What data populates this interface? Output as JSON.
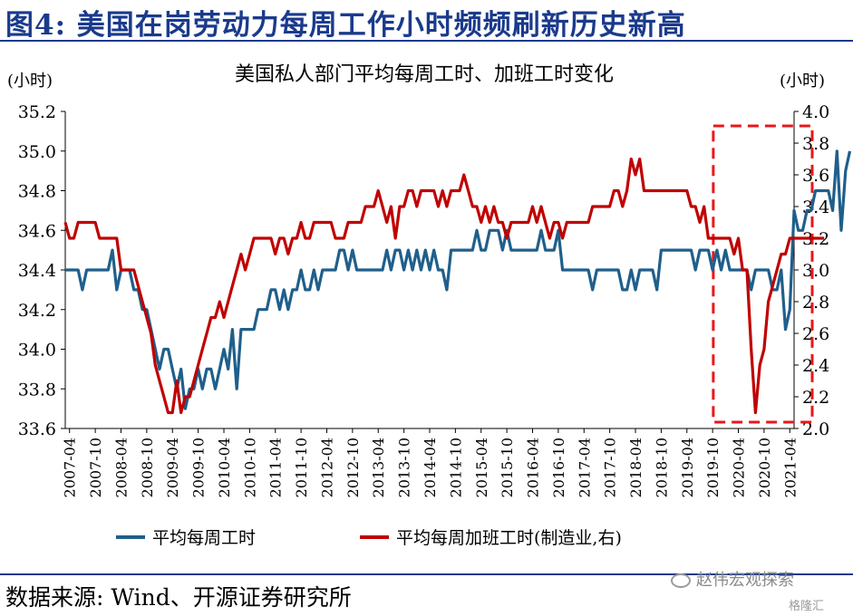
{
  "figure": {
    "title": "图4:  美国在岗劳动力每周工作小时频频刷新历史新高",
    "source": "数据来源:  Wind、开源证券研究所",
    "watermark": "赵伟宏观探索",
    "watermark_small": "格隆汇"
  },
  "chart_data": {
    "type": "line",
    "title": "美国私人部门平均每周工时、加班工时变化",
    "y_left_unit": "(小时)",
    "y_right_unit": "(小时)",
    "ylim_left": [
      33.6,
      35.2
    ],
    "ylim_right": [
      2.0,
      4.0
    ],
    "yticks_left": [
      "33.6",
      "33.8",
      "34.0",
      "34.2",
      "34.4",
      "34.6",
      "34.8",
      "35.0",
      "35.2"
    ],
    "yticks_right": [
      "2.0",
      "2.2",
      "2.4",
      "2.6",
      "2.8",
      "3.0",
      "3.2",
      "3.4",
      "3.6",
      "3.8",
      "4.0"
    ],
    "x_ticks": [
      "2007-04",
      "2007-10",
      "2008-04",
      "2008-10",
      "2009-04",
      "2009-10",
      "2010-04",
      "2010-10",
      "2011-04",
      "2011-10",
      "2012-04",
      "2012-10",
      "2013-04",
      "2013-10",
      "2014-04",
      "2014-10",
      "2015-04",
      "2015-10",
      "2016-04",
      "2016-10",
      "2017-04",
      "2017-10",
      "2018-04",
      "2018-10",
      "2019-04",
      "2019-10",
      "2020-04",
      "2020-10",
      "2021-04"
    ],
    "x_start": "2007-03",
    "grid": false,
    "legend_position": "bottom",
    "highlight_box": {
      "from": "2019-11",
      "to": "2021-04",
      "style": "red dashed"
    },
    "series": [
      {
        "name": "平均每周工时",
        "axis": "left",
        "color": "#1f5f8b",
        "values": [
          34.4,
          34.4,
          34.4,
          34.4,
          34.3,
          34.4,
          34.4,
          34.4,
          34.4,
          34.4,
          34.4,
          34.5,
          34.3,
          34.4,
          34.4,
          34.4,
          34.3,
          34.3,
          34.2,
          34.2,
          34.1,
          34.0,
          33.9,
          34.0,
          34.0,
          33.9,
          33.8,
          33.9,
          33.7,
          33.8,
          33.8,
          33.9,
          33.8,
          33.9,
          33.9,
          33.8,
          33.9,
          34.0,
          33.9,
          34.1,
          33.8,
          34.1,
          34.1,
          34.1,
          34.1,
          34.2,
          34.2,
          34.2,
          34.3,
          34.3,
          34.2,
          34.3,
          34.2,
          34.3,
          34.3,
          34.4,
          34.3,
          34.3,
          34.4,
          34.3,
          34.4,
          34.4,
          34.4,
          34.4,
          34.5,
          34.5,
          34.4,
          34.5,
          34.4,
          34.4,
          34.4,
          34.4,
          34.4,
          34.4,
          34.4,
          34.5,
          34.4,
          34.5,
          34.5,
          34.4,
          34.5,
          34.4,
          34.5,
          34.4,
          34.5,
          34.4,
          34.5,
          34.4,
          34.4,
          34.3,
          34.5,
          34.5,
          34.5,
          34.5,
          34.5,
          34.5,
          34.6,
          34.5,
          34.5,
          34.6,
          34.6,
          34.6,
          34.5,
          34.6,
          34.5,
          34.5,
          34.5,
          34.5,
          34.5,
          34.5,
          34.5,
          34.6,
          34.5,
          34.5,
          34.5,
          34.6,
          34.4,
          34.4,
          34.4,
          34.4,
          34.4,
          34.4,
          34.4,
          34.3,
          34.4,
          34.4,
          34.4,
          34.4,
          34.4,
          34.4,
          34.3,
          34.3,
          34.4,
          34.3,
          34.4,
          34.4,
          34.4,
          34.4,
          34.3,
          34.5,
          34.5,
          34.5,
          34.5,
          34.5,
          34.5,
          34.5,
          34.5,
          34.4,
          34.5,
          34.5,
          34.5,
          34.4,
          34.5,
          34.4,
          34.5,
          34.4,
          34.4,
          34.4,
          34.4,
          34.4,
          34.3,
          34.4,
          34.4,
          34.4,
          34.4,
          34.3,
          34.3,
          34.4,
          34.1,
          34.2,
          34.7,
          34.6,
          34.6,
          34.7,
          34.7,
          34.8,
          34.8,
          34.8,
          34.8,
          34.7,
          35.0,
          34.6,
          34.9,
          35.0
        ]
      },
      {
        "name": "平均每周加班工时(制造业,右)",
        "axis": "right",
        "color": "#c00000",
        "values": [
          3.3,
          3.2,
          3.2,
          3.3,
          3.3,
          3.3,
          3.3,
          3.3,
          3.2,
          3.2,
          3.2,
          3.2,
          3.2,
          3.0,
          3.0,
          3.0,
          3.0,
          2.9,
          2.8,
          2.7,
          2.6,
          2.4,
          2.3,
          2.2,
          2.1,
          2.1,
          2.3,
          2.1,
          2.2,
          2.2,
          2.3,
          2.4,
          2.5,
          2.6,
          2.7,
          2.7,
          2.8,
          2.7,
          2.8,
          2.9,
          3.0,
          3.1,
          3.0,
          3.1,
          3.2,
          3.2,
          3.2,
          3.2,
          3.2,
          3.1,
          3.2,
          3.2,
          3.1,
          3.2,
          3.2,
          3.3,
          3.2,
          3.2,
          3.3,
          3.3,
          3.3,
          3.3,
          3.3,
          3.2,
          3.2,
          3.2,
          3.3,
          3.3,
          3.3,
          3.3,
          3.4,
          3.4,
          3.4,
          3.5,
          3.4,
          3.3,
          3.4,
          3.2,
          3.4,
          3.4,
          3.5,
          3.5,
          3.4,
          3.5,
          3.5,
          3.5,
          3.5,
          3.4,
          3.5,
          3.4,
          3.5,
          3.5,
          3.5,
          3.6,
          3.5,
          3.4,
          3.4,
          3.3,
          3.4,
          3.3,
          3.4,
          3.3,
          3.3,
          3.2,
          3.3,
          3.3,
          3.3,
          3.3,
          3.3,
          3.4,
          3.3,
          3.4,
          3.3,
          3.2,
          3.3,
          3.3,
          3.2,
          3.3,
          3.3,
          3.3,
          3.3,
          3.3,
          3.3,
          3.4,
          3.4,
          3.4,
          3.4,
          3.4,
          3.5,
          3.5,
          3.4,
          3.5,
          3.7,
          3.6,
          3.7,
          3.5,
          3.5,
          3.5,
          3.5,
          3.5,
          3.5,
          3.5,
          3.5,
          3.5,
          3.5,
          3.5,
          3.4,
          3.4,
          3.3,
          3.4,
          3.2,
          3.2,
          3.2,
          3.2,
          3.2,
          3.2,
          3.1,
          3.2,
          3.0,
          3.0,
          2.5,
          2.1,
          2.4,
          2.5,
          2.8,
          2.9,
          3.0,
          3.1,
          3.1,
          3.2,
          3.2,
          3.2,
          3.2,
          3.2,
          3.2,
          3.2,
          3.2,
          3.2
        ]
      }
    ]
  }
}
